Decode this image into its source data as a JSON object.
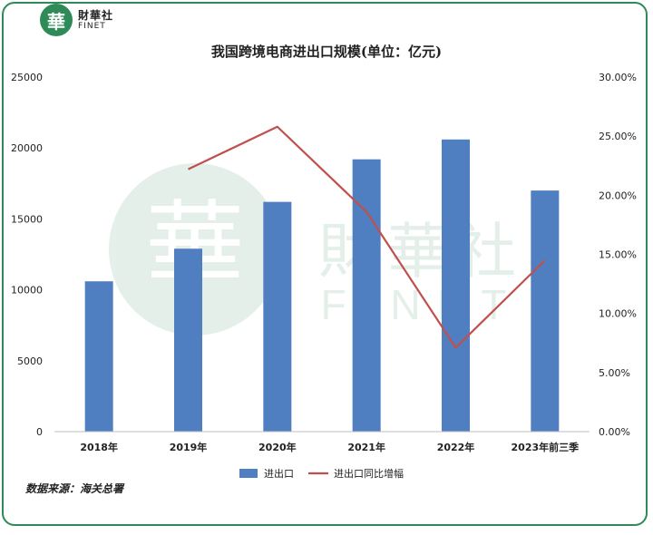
{
  "brand": {
    "badge": "華",
    "name_cn": "財華社",
    "name_en": "FINET"
  },
  "watermark": {
    "badge": "華",
    "name_cn": "財華社",
    "name_en": "FINET"
  },
  "title": "我国跨境电商进出口规模(单位：亿元)",
  "source": "数据来源：海关总署",
  "colors": {
    "bar": "#4f7fc0",
    "line": "#c0504d",
    "frame": "#2e8a57"
  },
  "chart_data": {
    "type": "bar",
    "title": "我国跨境电商进出口规模(单位：亿元)",
    "categories": [
      "2018年",
      "2019年",
      "2020年",
      "2021年",
      "2022年",
      "2023年前三季"
    ],
    "series": [
      {
        "name": "进出口",
        "type": "bar",
        "axis": "left",
        "values": [
          10600,
          12900,
          16200,
          19200,
          20600,
          17000
        ]
      },
      {
        "name": "进出口同比增幅",
        "type": "line",
        "axis": "right",
        "values": [
          null,
          0.222,
          0.258,
          0.186,
          0.071,
          0.145
        ]
      }
    ],
    "y_left": {
      "min": 0,
      "max": 25000,
      "ticks": [
        "0",
        "5000",
        "10000",
        "15000",
        "20000",
        "25000"
      ]
    },
    "y_right": {
      "min": 0,
      "max": 0.3,
      "ticks": [
        "0.00%",
        "5.00%",
        "10.00%",
        "15.00%",
        "20.00%",
        "25.00%",
        "30.00%"
      ]
    },
    "legend": "bottom",
    "grid": false
  }
}
